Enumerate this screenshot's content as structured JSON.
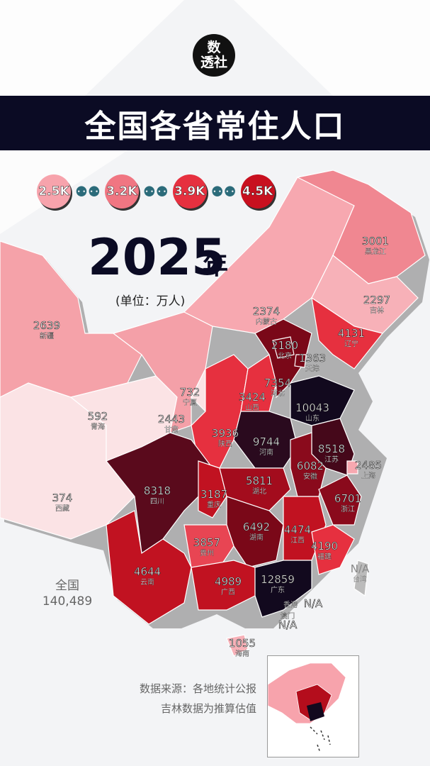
{
  "logo": {
    "line1": "数",
    "line2": "透社"
  },
  "title": "全国各省常住人口",
  "legend": [
    "2.5K",
    "3.2K",
    "3.9K",
    "4.5K"
  ],
  "colors": {
    "c1": "#fbe2e4",
    "c2": "#f7a3ac",
    "c3": "#ee5f6e",
    "c4": "#e3212f",
    "c5": "#b40d1c",
    "c6": "#7a0818",
    "c7": "#45081a",
    "c8": "#12091e",
    "legend_colors": [
      "#f7a3ac",
      "#f07682",
      "#e6303f",
      "#c8101f"
    ]
  },
  "year": "2025",
  "year_suffix": "年",
  "unit": "(单位：万人)",
  "total": {
    "label": "全国",
    "value": "140,489"
  },
  "source": {
    "line1": "数据来源：各地统计公报",
    "line2": "吉林数据为推算估值"
  },
  "provinces": [
    {
      "name": "黑龙江",
      "value": "3001"
    },
    {
      "name": "吉林",
      "value": "2297"
    },
    {
      "name": "辽宁",
      "value": "4131"
    },
    {
      "name": "内蒙古",
      "value": "2374"
    },
    {
      "name": "新疆",
      "value": "2639"
    },
    {
      "name": "北京",
      "value": "2180"
    },
    {
      "name": "天津",
      "value": "1363"
    },
    {
      "name": "河北",
      "value": "7354"
    },
    {
      "name": "山西",
      "value": "3424"
    },
    {
      "name": "宁夏",
      "value": "732"
    },
    {
      "name": "山东",
      "value": "10043"
    },
    {
      "name": "青海",
      "value": "592"
    },
    {
      "name": "甘肃",
      "value": "2443"
    },
    {
      "name": "陕西",
      "value": "3936"
    },
    {
      "name": "河南",
      "value": "9744"
    },
    {
      "name": "江苏",
      "value": "8518"
    },
    {
      "name": "安徽",
      "value": "6082"
    },
    {
      "name": "上海",
      "value": "2485"
    },
    {
      "name": "西藏",
      "value": "374"
    },
    {
      "name": "四川",
      "value": "8318"
    },
    {
      "name": "重庆",
      "value": "3187"
    },
    {
      "name": "湖北",
      "value": "5811"
    },
    {
      "name": "浙江",
      "value": "6701"
    },
    {
      "name": "湖南",
      "value": "6492"
    },
    {
      "name": "江西",
      "value": "4474"
    },
    {
      "name": "贵州",
      "value": "3857"
    },
    {
      "name": "福建",
      "value": "4190"
    },
    {
      "name": "云南",
      "value": "4644"
    },
    {
      "name": "广西",
      "value": "4989"
    },
    {
      "name": "广东",
      "value": "12859"
    },
    {
      "name": "台湾",
      "value": "N/A"
    },
    {
      "name": "香港",
      "value": "N/A"
    },
    {
      "name": "澳门",
      "value": "N/A"
    },
    {
      "name": "海南",
      "value": "1055"
    }
  ]
}
